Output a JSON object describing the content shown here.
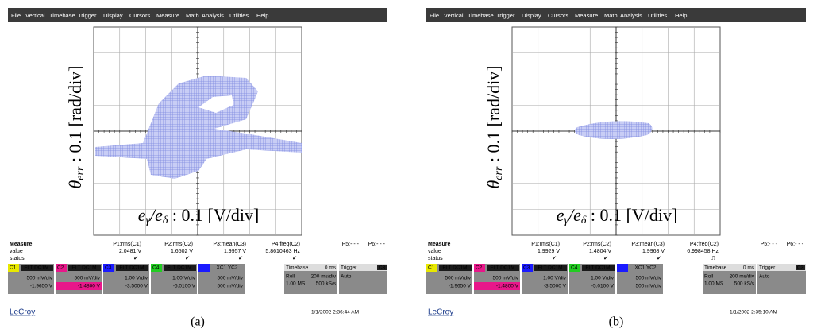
{
  "panels": [
    {
      "caption": "(a)",
      "menu": [
        "File",
        "Vertical",
        "Timebase",
        "Trigger",
        "Display",
        "Cursors",
        "Measure",
        "Math",
        "Analysis",
        "Utilities",
        "Help"
      ],
      "y_label": {
        "symbol": "θ",
        "sub": "err",
        "rest": " : 0.1 [rad/div]"
      },
      "x_label": {
        "e1": "e",
        "sub1": "γ",
        "slash": "/e",
        "sub2": "δ",
        "rest": " : 0.1 [V/div]"
      },
      "measure": {
        "title": "Measure",
        "row_labels": [
          "value",
          "status"
        ],
        "params": [
          "P1:rms(C1)",
          "P2:rms(C2)",
          "P3:mean(C3)",
          "P4:freq(C2)",
          "P5:- - -",
          "P6:- - -"
        ],
        "values": [
          "2.0481 V",
          "1.6502 V",
          "1.9957 V",
          "5.8610463 Hz"
        ],
        "status": [
          "✔",
          "✔",
          "✔",
          "✔"
        ]
      },
      "channels": [
        {
          "name": "C1",
          "tag": "FLT DC1M",
          "scale": "500 mV/div",
          "offset": "-1.9650 V"
        },
        {
          "name": "C2",
          "tag": "FLT DC1M",
          "scale": "500 mV/div",
          "offset": "-1.4800 V"
        },
        {
          "name": "C3",
          "tag": "FLT DC1M",
          "scale": "1.00 V/div",
          "offset": "-3.5000 V"
        },
        {
          "name": "C4",
          "tag": "FLT DC1M",
          "scale": "1.00 V/div",
          "offset": "-5.0100 V"
        },
        {
          "name": "",
          "tag": "XC1 YC2",
          "scale": "500 mV/div",
          "offset": "500 mV/div"
        }
      ],
      "timebase": {
        "title": "Timebase",
        "delay": "0 ms",
        "mode": "Roll",
        "rate": "200 ms/div",
        "points": "1.00 MS",
        "sample": "500 kS/s"
      },
      "trigger": {
        "title": "Trigger",
        "source": "C3",
        "mode": "Auto"
      },
      "logo": "LeCroy",
      "timestamp": "1/1/2002 2:36:44 AM"
    },
    {
      "caption": "(b)",
      "menu": [
        "File",
        "Vertical",
        "Timebase",
        "Trigger",
        "Display",
        "Cursors",
        "Measure",
        "Math",
        "Analysis",
        "Utilities",
        "Help"
      ],
      "y_label": {
        "symbol": "θ",
        "sub": "err",
        "rest": " : 0.1 [rad/div]"
      },
      "x_label": {
        "e1": "e",
        "sub1": "γ",
        "slash": "/e",
        "sub2": "δ",
        "rest": " : 0.1 [V/div]"
      },
      "measure": {
        "title": "Measure",
        "row_labels": [
          "value",
          "status"
        ],
        "params": [
          "P1:rms(C1)",
          "P2:rms(C2)",
          "P3:mean(C3)",
          "P4:freq(C2)",
          "P5:- - -",
          "P6:- - -"
        ],
        "values": [
          "1.9929 V",
          "1.4804 V",
          "1.9968 V",
          "6.998458 Hz"
        ],
        "status": [
          "✔",
          "✔",
          "✔",
          "⎍"
        ]
      },
      "channels": [
        {
          "name": "C1",
          "tag": "FLT DC1M",
          "scale": "500 mV/div",
          "offset": "-1.9650 V"
        },
        {
          "name": "C2",
          "tag": "FLT DC1M",
          "scale": "500 mV/div",
          "offset": "-1.4800 V"
        },
        {
          "name": "C3",
          "tag": "FLT DC1M",
          "scale": "1.00 V/div",
          "offset": "-3.5000 V"
        },
        {
          "name": "C4",
          "tag": "FLT DC1M",
          "scale": "1.00 V/div",
          "offset": "-5.0100 V"
        },
        {
          "name": "",
          "tag": "XC1 YC2",
          "scale": "500 mV/div",
          "offset": "500 mV/div"
        }
      ],
      "timebase": {
        "title": "Timebase",
        "delay": "0 ms",
        "mode": "Roll",
        "rate": "200 ms/div",
        "points": "1.00 MS",
        "sample": "500 kS/s"
      },
      "trigger": {
        "title": "Trigger",
        "source": "C3",
        "mode": "Auto"
      },
      "logo": "LeCroy",
      "timestamp": "1/1/2002 2:35:10 AM"
    }
  ]
}
